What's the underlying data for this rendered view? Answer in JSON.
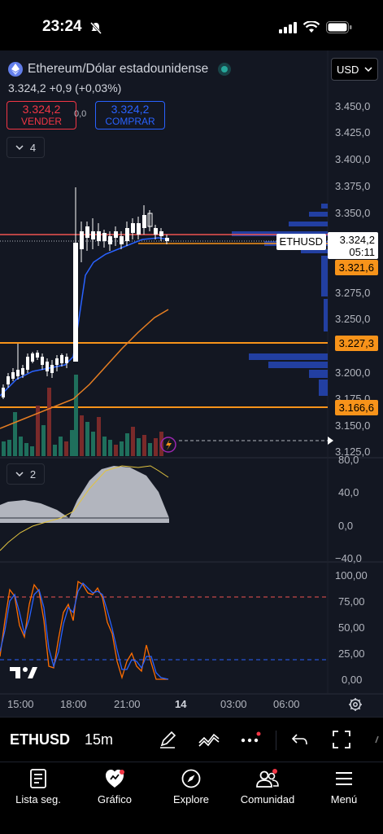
{
  "status": {
    "time": "23:24"
  },
  "header": {
    "symbol": "Ethereum/Dólar estadounidense",
    "currency": "USD",
    "price_change": "3.324,2 +0,9 (+0,03%)",
    "sell": {
      "price": "3.324,2",
      "label": "VENDER"
    },
    "buy": {
      "price": "3.324,2",
      "label": "COMPRAR"
    },
    "spread": "0,0",
    "main_indicators_count": "4",
    "osc_indicators_count": "2"
  },
  "price_axis": [
    "3.450,0",
    "3.425,0",
    "3.400,0",
    "3.375,0",
    "3.350,0",
    "3.275,0",
    "3.250,0",
    "3.200,0",
    "3.175,0",
    "3.150,0",
    "3.125,0"
  ],
  "price_tags": {
    "symbol_tag": "ETHUSD",
    "current_price": "3.324,2",
    "countdown": "05:11",
    "level_1": "3.321,6",
    "level_2": "3.227,3",
    "level_3": "3.166,6"
  },
  "osc_axis": [
    "80,0",
    "40,0",
    "0,0",
    "−40,0"
  ],
  "stoch_axis": [
    "100,00",
    "75,00",
    "50,00",
    "25,00",
    "0,00"
  ],
  "time_axis": [
    "15:00",
    "18:00",
    "21:00",
    "14",
    "03:00",
    "06:00"
  ],
  "toolbar": {
    "symbol": "ETHUSD",
    "timeframe": "15m"
  },
  "tabs": [
    {
      "label": "Lista seg.",
      "icon": "watchlist-icon"
    },
    {
      "label": "Gráfico",
      "icon": "chart-icon"
    },
    {
      "label": "Explore",
      "icon": "compass-icon"
    },
    {
      "label": "Comunidad",
      "icon": "community-icon"
    },
    {
      "label": "Menú",
      "icon": "menu-icon"
    }
  ],
  "colors": {
    "background": "#131722",
    "up": "#ffffff",
    "down": "#ef5350",
    "accent_blue": "#2962ff",
    "level_orange": "#f7931a",
    "sell_red": "#f23645"
  }
}
